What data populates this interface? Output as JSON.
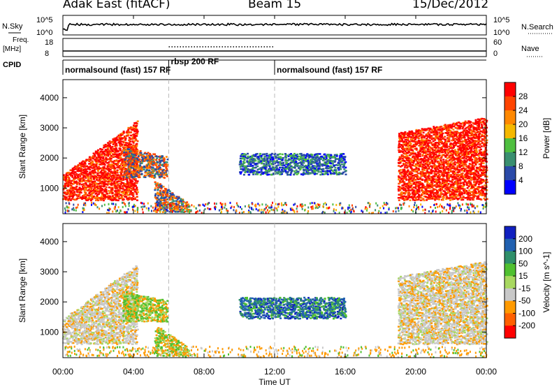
{
  "header": {
    "station": "Adak East (fitACF)",
    "beam": "Beam 15",
    "date": "15/Dec/2012"
  },
  "noise_panel": {
    "left_label": "N.Sky",
    "right_label": "N.Search",
    "left_ticks": [
      "10^5",
      "10^0"
    ],
    "right_ticks": [
      "10^5",
      "10^0"
    ]
  },
  "freq_panel": {
    "left_label_1": "Freq.",
    "left_label_2": "[MHz]",
    "right_label": "Nave",
    "left_ticks": [
      "18",
      "8"
    ],
    "right_ticks": [
      "60",
      "0"
    ]
  },
  "cpid": {
    "label": "CPID",
    "segments": [
      {
        "text": "normalsound (fast) 157 RF",
        "start_h": 0,
        "end_h": 6
      },
      {
        "text": "rbsp 200 RF",
        "start_h": 6,
        "end_h": 12
      },
      {
        "text": "normalsound (fast) 157 RF",
        "start_h": 12,
        "end_h": 24
      }
    ]
  },
  "colors": {
    "power": [
      "#0000ff",
      "#2a4aa8",
      "#3a8f70",
      "#4fbf40",
      "#f5b800",
      "#ff8800",
      "#ff4400",
      "#ff0000"
    ],
    "velocity": [
      "#ff0000",
      "#ff6000",
      "#ff9a00",
      "#c8c8c8",
      "#a8d860",
      "#50c030",
      "#2f8f6a",
      "#2060b0",
      "#1020c0"
    ]
  },
  "chart_data": [
    {
      "type": "heatmap",
      "name": "power",
      "ylabel": "Slant Range [km]",
      "yticks": [
        "1000",
        "2000",
        "3000",
        "4000"
      ],
      "ylim": [
        150,
        4600
      ],
      "xlim": [
        0,
        24
      ],
      "colorbar_label": "Power [dB]",
      "colorbar_ticks": [
        "4",
        "8",
        "12",
        "16",
        "20",
        "24",
        "28"
      ],
      "colorbar_range": [
        0,
        32
      ],
      "regions": [
        {
          "t0": 0.0,
          "t1": 4.2,
          "r0": 650,
          "r1_start": 1500,
          "r1_end": 3300,
          "level": "high"
        },
        {
          "t0": 3.4,
          "t1": 5.9,
          "r0": 1400,
          "r1_start": 2400,
          "r1_end": 2100,
          "level": "mixed"
        },
        {
          "t0": 5.2,
          "t1": 7.2,
          "r0": 250,
          "r1_start": 1300,
          "r1_end": 500,
          "level": "mixed"
        },
        {
          "t0": 10.0,
          "t1": 16.0,
          "r0": 1500,
          "r1_start": 2200,
          "r1_end": 2200,
          "level": "low"
        },
        {
          "t0": 19.0,
          "t1": 24.0,
          "r0": 650,
          "r1_start": 2900,
          "r1_end": 3400,
          "level": "high"
        }
      ]
    },
    {
      "type": "heatmap",
      "name": "velocity",
      "ylabel": "Slant Range [km]",
      "yticks": [
        "1000",
        "2000",
        "3000",
        "4000"
      ],
      "ylim": [
        150,
        4600
      ],
      "xlim": [
        0,
        24
      ],
      "colorbar_label": "Velocity [m s^-1]",
      "colorbar_ticks": [
        "200",
        "100",
        "50",
        "15",
        "-15",
        "-50",
        "-100",
        "-200"
      ]
    }
  ],
  "x_axis": {
    "label": "Time UT",
    "ticks": [
      "00:00",
      "04:00",
      "08:00",
      "12:00",
      "16:00",
      "20:00",
      "00:00"
    ]
  }
}
